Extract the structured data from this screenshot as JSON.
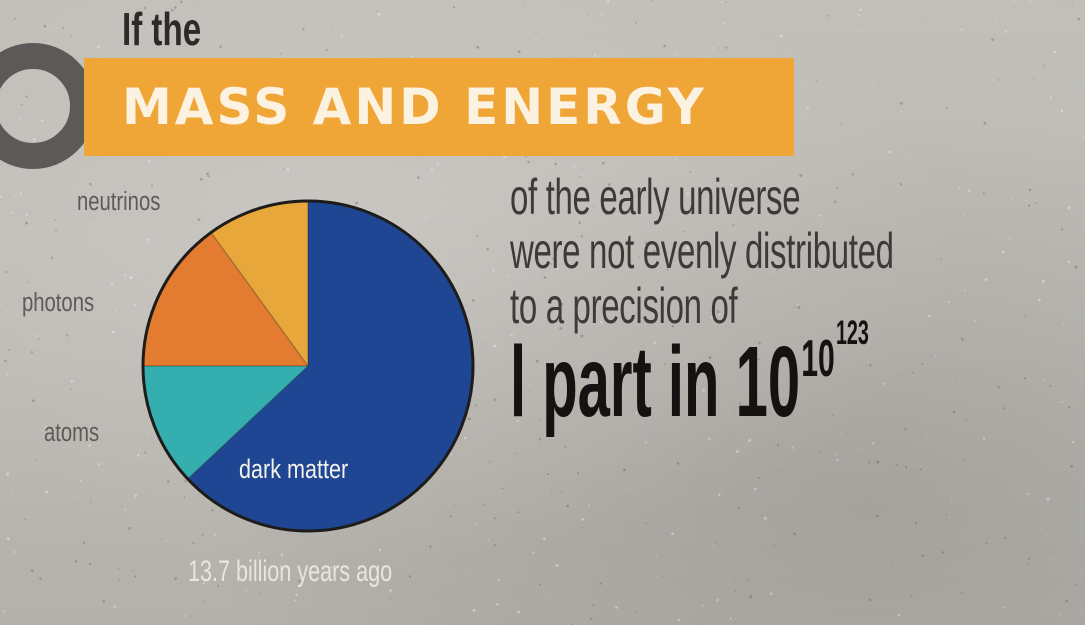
{
  "heading": {
    "prefix": "If the",
    "banner": "MASS AND ENERGY",
    "lines": [
      "of the early universe",
      "were not evenly distributed",
      "to a precision of"
    ],
    "precision": {
      "lead": "l part in 10",
      "exp1": "10",
      "exp2": "123"
    }
  },
  "caption": "13.7 billion years ago",
  "colors": {
    "dark_matter": "#1e4693",
    "atoms": "#35aeb0",
    "photons": "#e37c30",
    "neutrinos": "#e8a73a",
    "banner": "#f0a637",
    "ring": "#5b5a58"
  },
  "chart_data": {
    "type": "pie",
    "title": "",
    "slices": [
      {
        "label": "dark matter",
        "value": 63,
        "color": "#1e4693"
      },
      {
        "label": "atoms",
        "value": 12,
        "color": "#35aeb0"
      },
      {
        "label": "photons",
        "value": 15,
        "color": "#e37c30"
      },
      {
        "label": "neutrinos",
        "value": 10,
        "color": "#e8a73a"
      }
    ],
    "start": "top",
    "direction": "clockwise"
  }
}
